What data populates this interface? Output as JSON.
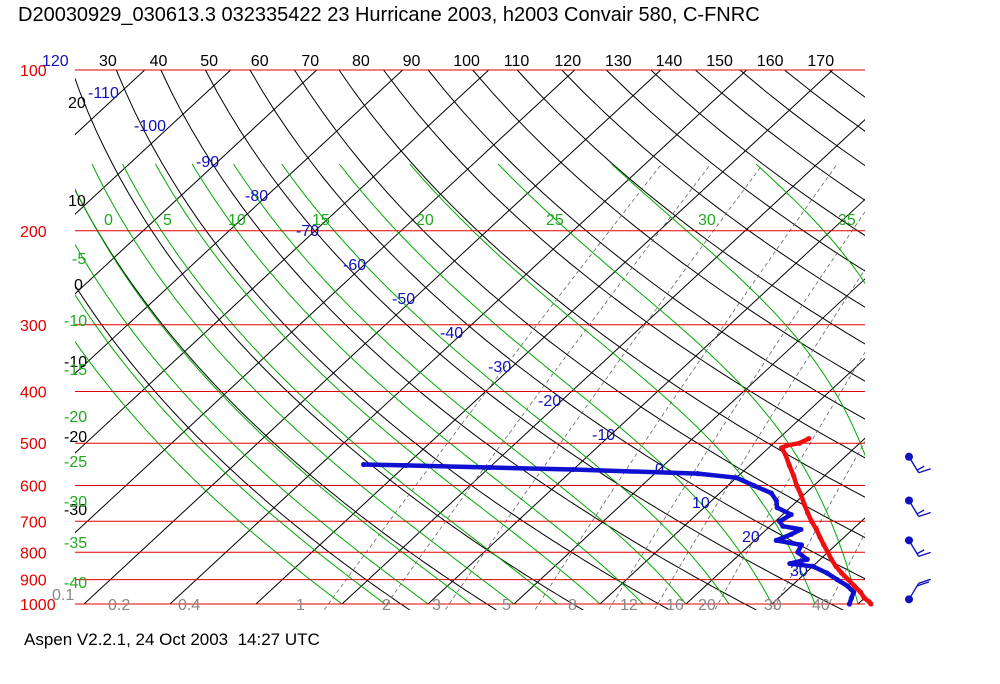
{
  "header": {
    "title": "D20030929_030613.3 032335422 23 Hurricane 2003, h2003 Convair 580, C-FNRC"
  },
  "footer": {
    "text": "Aspen V2.2.1, 24 Oct 2003  14:27 UTC"
  },
  "colors": {
    "isobar": "#e00000",
    "isotherm": "#000000",
    "dry_adiabat": "#000000",
    "moist_adiabat": "#00aa00",
    "mixing_ratio": "#666666",
    "temperature_trace": "#ee1010",
    "dewpoint_trace": "#1010d0",
    "axis_label_blue": "#1010c0",
    "axis_label_green": "#22aa22",
    "mixing_label": "#888888"
  },
  "chart_data": {
    "type": "skew-t",
    "pressure_axis": {
      "ticks": [
        100,
        200,
        300,
        400,
        500,
        600,
        700,
        800,
        900,
        1000
      ],
      "labels": [
        "100",
        "200",
        "300",
        "400",
        "500",
        "600",
        "700",
        "800",
        "900",
        "1000"
      ],
      "range": [
        100,
        1000
      ]
    },
    "top_theta_labels": [
      "120",
      "30",
      "40",
      "50",
      "60",
      "70",
      "80",
      "90",
      "100",
      "110",
      "120",
      "130",
      "140",
      "150",
      "160",
      "170"
    ],
    "isotherm_labels": [
      {
        "text": "-110",
        "t": -110
      },
      {
        "text": "-100",
        "t": -100
      },
      {
        "text": "-90",
        "t": -90
      },
      {
        "text": "-80",
        "t": -80
      },
      {
        "text": "-70",
        "t": -70
      },
      {
        "text": "-60",
        "t": -60
      },
      {
        "text": "-50",
        "t": -50
      },
      {
        "text": "-40",
        "t": -40
      },
      {
        "text": "-30",
        "t": -30
      },
      {
        "text": "-20",
        "t": -20
      },
      {
        "text": "-10",
        "t": -10
      },
      {
        "text": "0",
        "t": 0
      },
      {
        "text": "10",
        "t": 10
      },
      {
        "text": "20",
        "t": 20
      },
      {
        "text": "30",
        "t": 30
      }
    ],
    "left_black_labels": [
      "20",
      "10",
      "0",
      "-10",
      "-20",
      "-30"
    ],
    "moist_adiabat_labels": [
      "0",
      "5",
      "10",
      "15",
      "20",
      "25",
      "30",
      "35",
      "-5",
      "-10",
      "-15",
      "-20",
      "-25",
      "-30",
      "-35",
      "-40"
    ],
    "mixing_ratio_labels": [
      "0.1",
      "0.2",
      "0.4",
      "1",
      "2",
      "3",
      "5",
      "8",
      "12",
      "16",
      "20",
      "30",
      "40"
    ],
    "temperature_profile": [
      [
        1000,
        21.5
      ],
      [
        990,
        21.0
      ],
      [
        975,
        20.0
      ],
      [
        950,
        18.8
      ],
      [
        925,
        17.3
      ],
      [
        900,
        15.8
      ],
      [
        875,
        14.2
      ],
      [
        850,
        12.7
      ],
      [
        825,
        11.3
      ],
      [
        800,
        10.0
      ],
      [
        775,
        8.6
      ],
      [
        750,
        7.2
      ],
      [
        725,
        5.8
      ],
      [
        700,
        4.2
      ],
      [
        675,
        2.7
      ],
      [
        650,
        1.2
      ],
      [
        625,
        -0.3
      ],
      [
        600,
        -2.0
      ],
      [
        575,
        -3.6
      ],
      [
        550,
        -5.4
      ],
      [
        525,
        -7.2
      ],
      [
        510,
        -8.5
      ],
      [
        505,
        -8.2
      ],
      [
        500,
        -7.0
      ],
      [
        490,
        -6.5
      ]
    ],
    "dewpoint_profile": [
      [
        1000,
        19.0
      ],
      [
        975,
        18.5
      ],
      [
        950,
        18.0
      ],
      [
        925,
        16.5
      ],
      [
        900,
        14.5
      ],
      [
        875,
        12.5
      ],
      [
        850,
        10.0
      ],
      [
        840,
        7.0
      ],
      [
        825,
        8.5
      ],
      [
        800,
        6.5
      ],
      [
        775,
        6.0
      ],
      [
        760,
        2.5
      ],
      [
        740,
        3.5
      ],
      [
        725,
        4.0
      ],
      [
        715,
        1.5
      ],
      [
        700,
        0.5
      ],
      [
        680,
        1.0
      ],
      [
        660,
        -1.5
      ],
      [
        640,
        -2.5
      ],
      [
        620,
        -4.0
      ],
      [
        600,
        -7.0
      ],
      [
        580,
        -10.0
      ],
      [
        570,
        -15.0
      ],
      [
        560,
        -30.0
      ],
      [
        555,
        -40.0
      ],
      [
        550,
        -50.0
      ],
      [
        548,
        -55.0
      ]
    ],
    "wind_barbs": [
      {
        "pressure": 530,
        "speed_kt": 15,
        "dir_deg": 60
      },
      {
        "pressure": 640,
        "speed_kt": 15,
        "dir_deg": 60
      },
      {
        "pressure": 760,
        "speed_kt": 15,
        "dir_deg": 60
      },
      {
        "pressure": 980,
        "speed_kt": 20,
        "dir_deg": 120
      }
    ]
  }
}
